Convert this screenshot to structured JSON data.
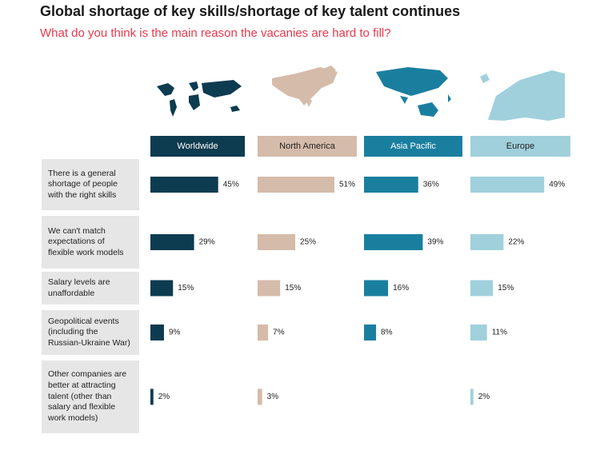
{
  "chart_data": {
    "type": "bar",
    "title": "Global shortage of key skills/shortage of key talent continues",
    "subtitle": "What do you think is the main reason the vacanies are hard to fill?",
    "categories": [
      "There is a general shortage of people with the right skills",
      "We can't match expectations of flexible work models",
      "Salary levels are unaffordable",
      "Geopolitical events (including the Russian-Ukraine War)",
      "Other companies are better at attracting talent (other than salary and flexible work models)"
    ],
    "series": [
      {
        "name": "Worldwide",
        "color": "#0d3b50",
        "values": [
          45,
          29,
          15,
          9,
          2
        ],
        "value_labels": [
          "45%",
          "29%",
          "15%",
          "9%",
          "2%"
        ]
      },
      {
        "name": "North America",
        "color": "#d5bba9",
        "values": [
          51,
          25,
          15,
          7,
          3
        ],
        "value_labels": [
          "51%",
          "25%",
          "15%",
          "7%",
          "3%"
        ]
      },
      {
        "name": "Asia Pacific",
        "color": "#1a7f9f",
        "values": [
          36,
          39,
          16,
          8,
          null
        ],
        "value_labels": [
          "36%",
          "39%",
          "16%",
          "8%",
          null
        ]
      },
      {
        "name": "Europe",
        "color": "#a0d0dc",
        "values": [
          49,
          22,
          15,
          11,
          2
        ],
        "value_labels": [
          "49%",
          "22%",
          "15%",
          "11%",
          "2%"
        ]
      }
    ]
  }
}
